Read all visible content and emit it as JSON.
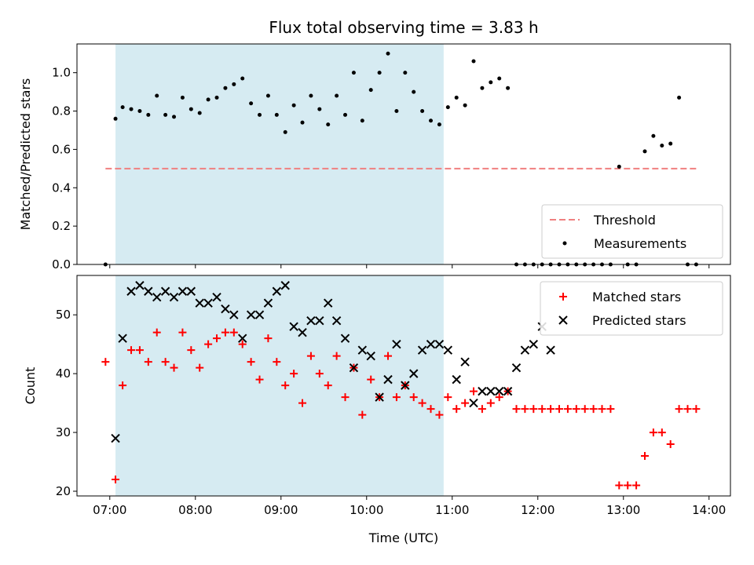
{
  "chart_data": [
    {
      "type": "scatter",
      "title": "Flux total observing time = 3.83 h",
      "ylabel": "Matched/Predicted stars",
      "xlabel": "",
      "xlim": [
        "06:37",
        "14:15"
      ],
      "ylim": [
        0,
        1.15
      ],
      "yticks": [
        "0.0",
        "0.2",
        "0.4",
        "0.6",
        "0.8",
        "1.0"
      ],
      "shaded_span": [
        "07:04",
        "10:54"
      ],
      "shade_color": "#add8e6",
      "threshold": {
        "name": "Threshold",
        "value": 0.5,
        "x": [
          "06:57",
          "13:53"
        ],
        "color": "#f08080"
      },
      "legend_position": "lower-right",
      "series": [
        {
          "name": "Measurements",
          "color": "#000000",
          "x": [
            "06:57",
            "07:04",
            "07:09",
            "07:15",
            "07:21",
            "07:27",
            "07:33",
            "07:39",
            "07:45",
            "07:51",
            "07:57",
            "08:03",
            "08:09",
            "08:15",
            "08:21",
            "08:27",
            "08:33",
            "08:39",
            "08:45",
            "08:51",
            "08:57",
            "09:03",
            "09:09",
            "09:15",
            "09:21",
            "09:27",
            "09:33",
            "09:39",
            "09:45",
            "09:51",
            "09:57",
            "10:03",
            "10:09",
            "10:15",
            "10:21",
            "10:27",
            "10:33",
            "10:39",
            "10:45",
            "10:51",
            "10:57",
            "11:03",
            "11:09",
            "11:15",
            "11:21",
            "11:27",
            "11:33",
            "11:39",
            "11:45",
            "11:51",
            "11:57",
            "12:03",
            "12:09",
            "12:15",
            "12:21",
            "12:27",
            "12:33",
            "12:39",
            "12:45",
            "12:51",
            "12:57",
            "13:03",
            "13:09",
            "13:15",
            "13:21",
            "13:27",
            "13:33",
            "13:39",
            "13:45",
            "13:51"
          ],
          "y": [
            0,
            0.76,
            0.82,
            0.81,
            0.8,
            0.78,
            0.88,
            0.78,
            0.77,
            0.87,
            0.81,
            0.79,
            0.86,
            0.87,
            0.92,
            0.94,
            0.97,
            0.84,
            0.78,
            0.88,
            0.78,
            0.69,
            0.83,
            0.74,
            0.88,
            0.81,
            0.73,
            0.88,
            0.78,
            1.0,
            0.75,
            0.91,
            1.0,
            1.1,
            0.8,
            1.0,
            0.9,
            0.8,
            0.75,
            0.73,
            0.82,
            0.87,
            0.83,
            1.06,
            0.92,
            0.95,
            0.97,
            0.92,
            0,
            0,
            0,
            0,
            0,
            0,
            0,
            0,
            0,
            0,
            0,
            0,
            0.51,
            0,
            0,
            0.59,
            0.67,
            0.62,
            0.63,
            0.87,
            0,
            0
          ]
        }
      ]
    },
    {
      "type": "scatter",
      "xlabel": "Time (UTC)",
      "ylabel": "Count",
      "xlim": [
        "06:37",
        "14:15"
      ],
      "ylim": [
        19.2,
        56.7
      ],
      "xticks": [
        "07:00",
        "08:00",
        "09:00",
        "10:00",
        "11:00",
        "12:00",
        "13:00",
        "14:00"
      ],
      "yticks": [
        "20",
        "30",
        "40",
        "50"
      ],
      "shaded_span": [
        "07:04",
        "10:54"
      ],
      "shade_color": "#add8e6",
      "legend_position": "upper-right",
      "series": [
        {
          "name": "Matched stars",
          "marker": "plus",
          "color": "#ff0000",
          "x": [
            "06:57",
            "07:04",
            "07:09",
            "07:15",
            "07:21",
            "07:27",
            "07:33",
            "07:39",
            "07:45",
            "07:51",
            "07:57",
            "08:03",
            "08:09",
            "08:15",
            "08:21",
            "08:27",
            "08:33",
            "08:39",
            "08:45",
            "08:51",
            "08:57",
            "09:03",
            "09:09",
            "09:15",
            "09:21",
            "09:27",
            "09:33",
            "09:39",
            "09:45",
            "09:51",
            "09:57",
            "10:03",
            "10:09",
            "10:15",
            "10:21",
            "10:27",
            "10:33",
            "10:39",
            "10:45",
            "10:51",
            "10:57",
            "11:03",
            "11:09",
            "11:15",
            "11:21",
            "11:27",
            "11:33",
            "11:39",
            "11:45",
            "11:51",
            "11:57",
            "12:03",
            "12:09",
            "12:15",
            "12:21",
            "12:27",
            "12:33",
            "12:39",
            "12:45",
            "12:51",
            "12:57",
            "13:03",
            "13:09",
            "13:15",
            "13:21",
            "13:27",
            "13:33",
            "13:39",
            "13:45",
            "13:51"
          ],
          "y": [
            42,
            22,
            38,
            44,
            44,
            42,
            47,
            42,
            41,
            47,
            44,
            41,
            45,
            46,
            47,
            47,
            45,
            42,
            39,
            46,
            42,
            38,
            40,
            35,
            43,
            40,
            38,
            43,
            36,
            41,
            33,
            39,
            36,
            43,
            36,
            38,
            36,
            35,
            34,
            33,
            36,
            34,
            35,
            37,
            34,
            35,
            36,
            37,
            34,
            34,
            34,
            34,
            34,
            34,
            34,
            34,
            34,
            34,
            34,
            34,
            21,
            21,
            21,
            26,
            30,
            30,
            28,
            34,
            34,
            34
          ]
        },
        {
          "name": "Predicted stars",
          "marker": "x",
          "color": "#000000",
          "x": [
            "07:04",
            "07:09",
            "07:15",
            "07:21",
            "07:27",
            "07:33",
            "07:39",
            "07:45",
            "07:51",
            "07:57",
            "08:03",
            "08:09",
            "08:15",
            "08:21",
            "08:27",
            "08:33",
            "08:39",
            "08:45",
            "08:51",
            "08:57",
            "09:03",
            "09:09",
            "09:15",
            "09:21",
            "09:27",
            "09:33",
            "09:39",
            "09:45",
            "09:51",
            "09:57",
            "10:03",
            "10:09",
            "10:15",
            "10:21",
            "10:27",
            "10:33",
            "10:39",
            "10:45",
            "10:51",
            "10:57",
            "11:03",
            "11:09",
            "11:15",
            "11:21",
            "11:27",
            "11:33",
            "11:39",
            "11:45",
            "11:51",
            "11:57",
            "12:03",
            "12:09"
          ],
          "y": [
            29,
            46,
            54,
            55,
            54,
            53,
            54,
            53,
            54,
            54,
            52,
            52,
            53,
            51,
            50,
            46,
            50,
            50,
            52,
            54,
            55,
            48,
            47,
            49,
            49,
            52,
            49,
            46,
            41,
            44,
            43,
            36,
            39,
            45,
            38,
            40,
            44,
            45,
            45,
            44,
            39,
            42,
            35,
            37,
            37,
            37,
            37,
            41,
            44,
            45,
            48,
            44
          ]
        }
      ]
    }
  ]
}
